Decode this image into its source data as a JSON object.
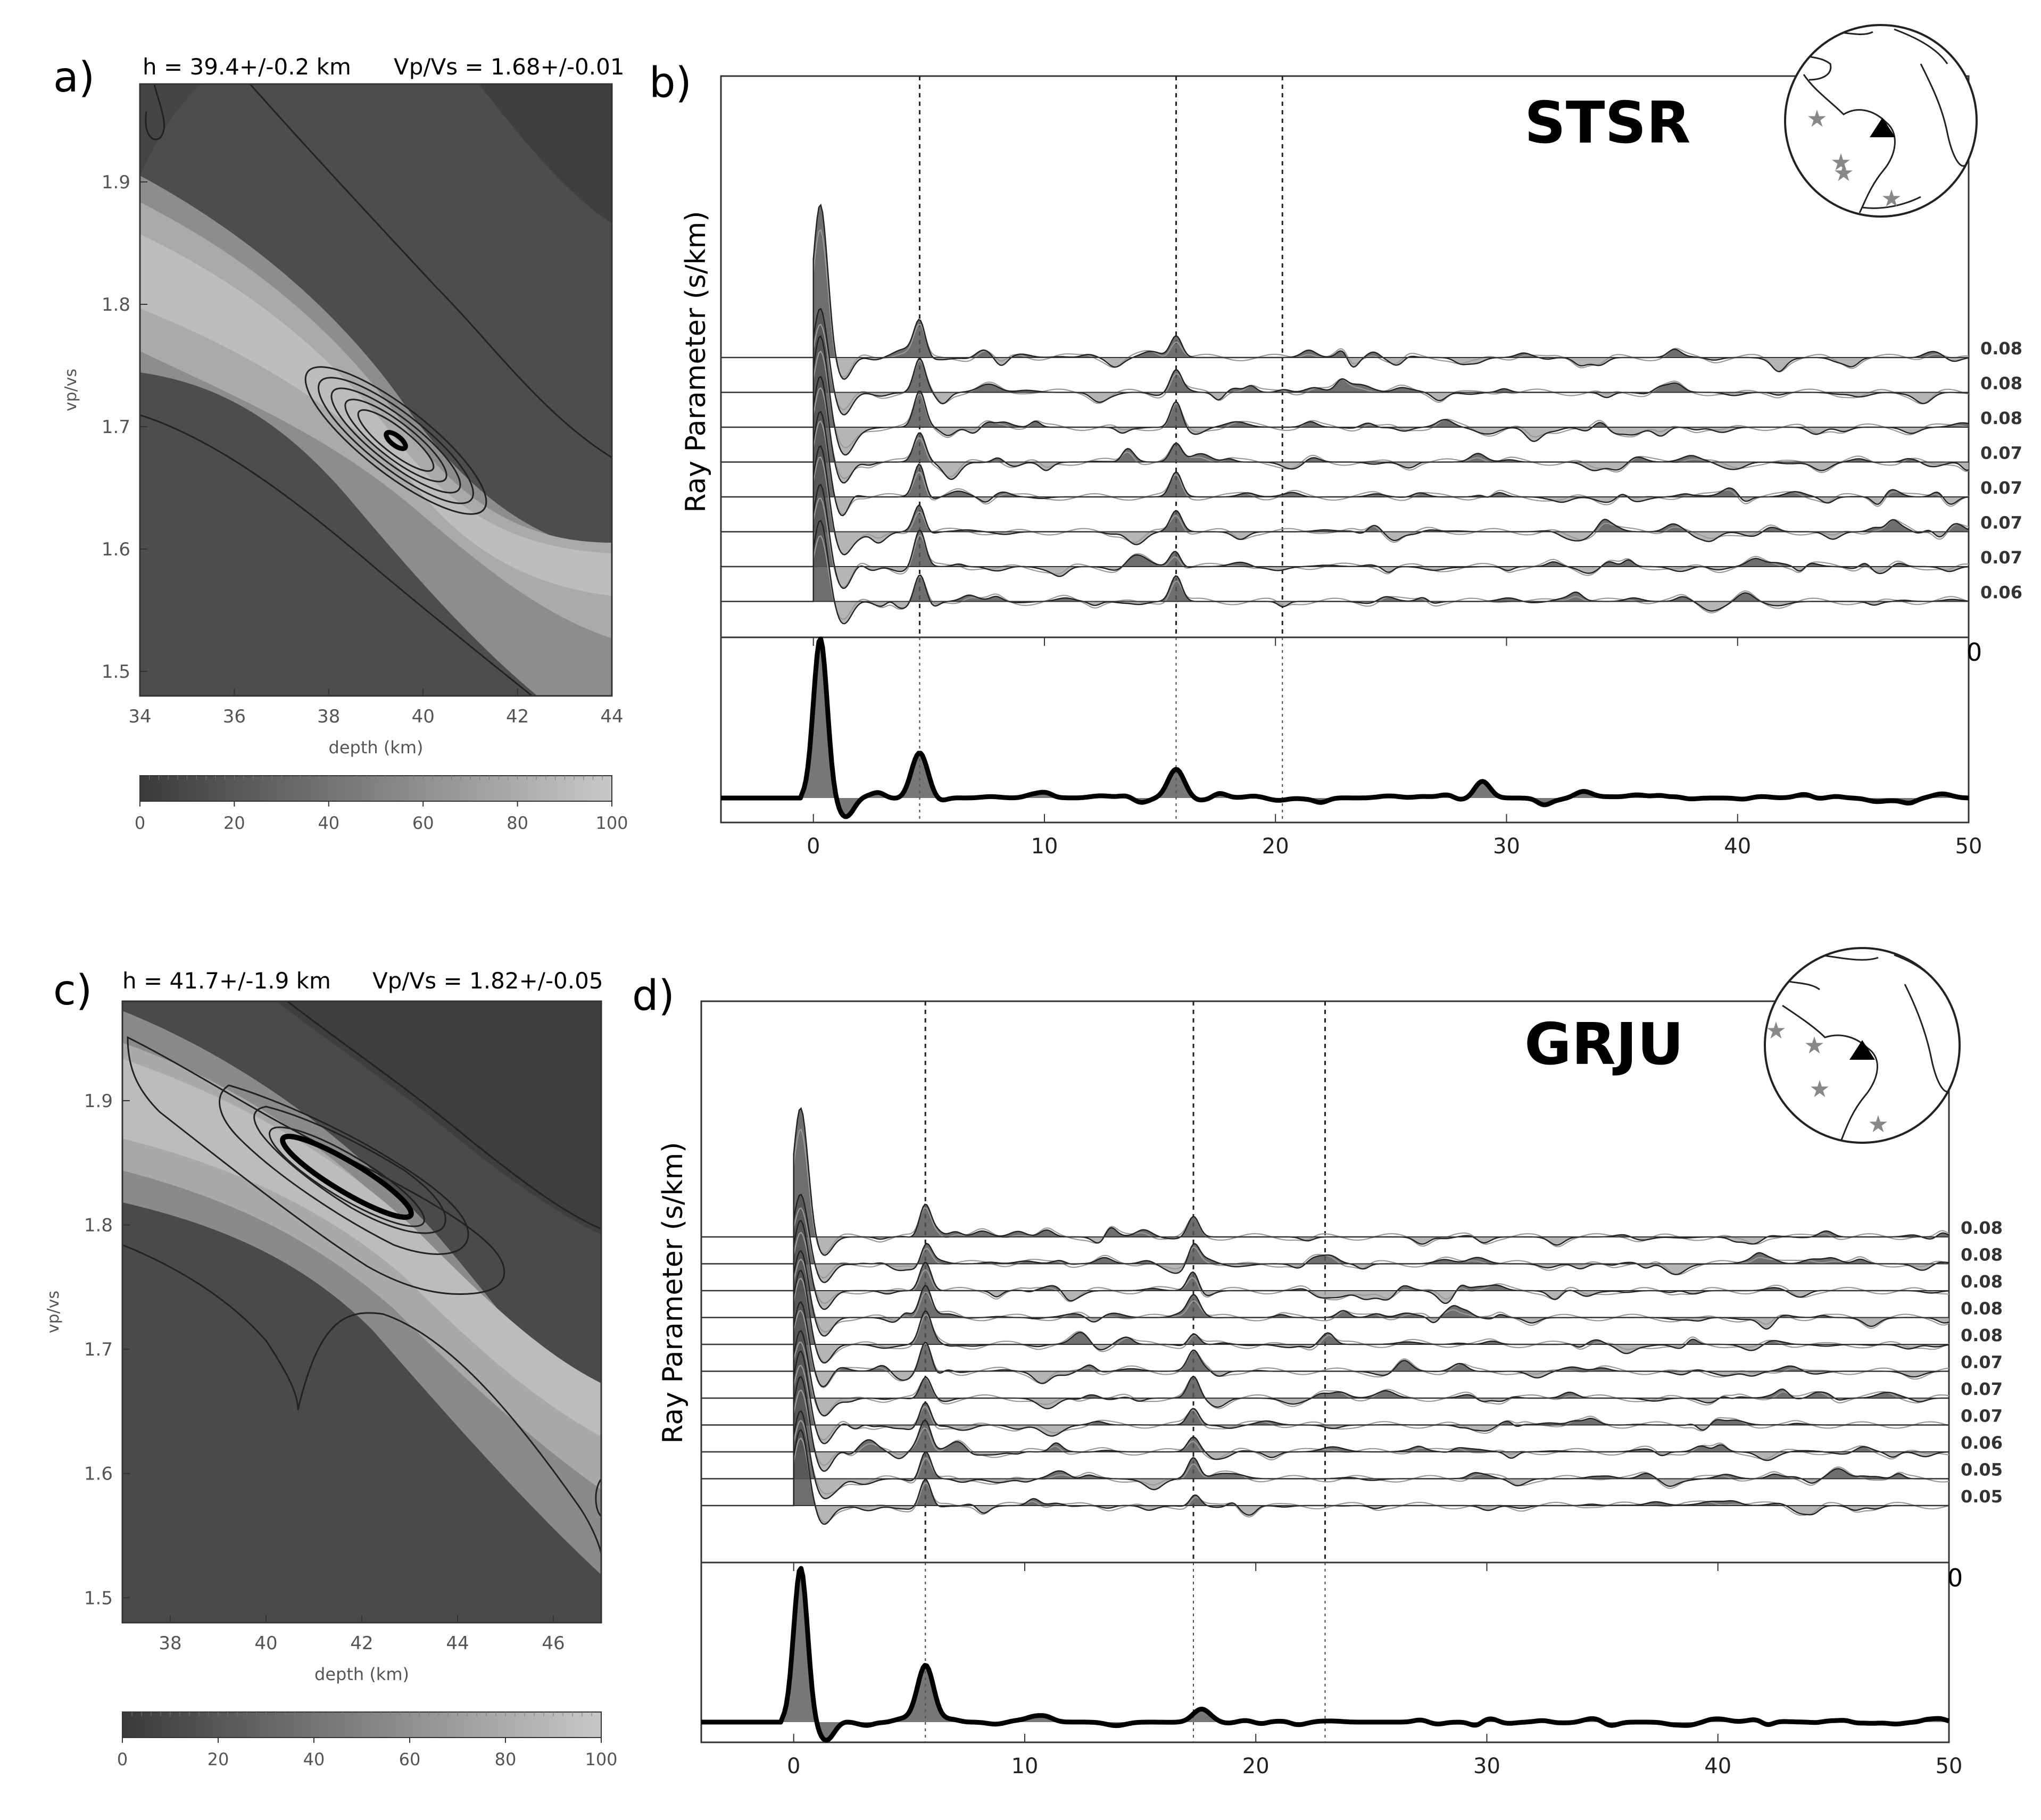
{
  "panels": {
    "a": {
      "letter": "a)",
      "h_text": "h = 39.4+/-0.2 km",
      "vpvs_text": "Vp/Vs = 1.68+/-0.01"
    },
    "b": {
      "letter": "b)",
      "station": "STSR"
    },
    "c": {
      "letter": "c)",
      "h_text": "h = 41.7+/-1.9 km",
      "vpvs_text": "Vp/Vs = 1.82+/-0.05"
    },
    "d": {
      "letter": "d)",
      "station": "GRJU"
    }
  },
  "colors": {
    "field_dark": "#4a4a4a",
    "field_light": "#bdbdbd",
    "trace_fill": "#555555",
    "negative_fill": "#a8a8a8",
    "star": "#888888"
  },
  "chart_data": [
    {
      "type": "heatmap",
      "panel": "a",
      "title": "",
      "xlabel": "depth (km)",
      "ylabel": "vp/vs",
      "xlim": [
        34,
        44
      ],
      "ylim": [
        1.48,
        1.98
      ],
      "xticks": [
        34,
        36,
        38,
        40,
        42,
        44
      ],
      "yticks": [
        1.5,
        1.6,
        1.7,
        1.8,
        1.9
      ],
      "best": {
        "h": 39.4,
        "vpvs": 1.68
      },
      "colorbar": {
        "range": [
          0,
          100
        ],
        "ticks": [
          0,
          20,
          40,
          60,
          80,
          100
        ]
      }
    },
    {
      "type": "line",
      "panel": "b",
      "station": "STSR",
      "ylabel": "Ray Parameter (s/km)",
      "xlim": [
        -4,
        50
      ],
      "xticks": [
        0,
        10,
        20,
        30,
        40,
        50
      ],
      "top_axis_partial_tick": "0",
      "ray_parameters": [
        "0.08",
        "0.08",
        "0.08",
        "0.07",
        "0.07",
        "0.07",
        "0.07",
        "0.06"
      ],
      "phase_times_s": [
        4.6,
        15.7,
        20.3
      ],
      "stack_peaks": [
        {
          "t": 0.3,
          "amp": 1.0
        },
        {
          "t": 4.6,
          "amp": 0.28
        },
        {
          "t": 15.7,
          "amp": 0.18
        },
        {
          "t": 28.9,
          "amp": 0.1
        }
      ]
    },
    {
      "type": "heatmap",
      "panel": "c",
      "title": "",
      "xlabel": "depth (km)",
      "ylabel": "vp/vs",
      "xlim": [
        37,
        47
      ],
      "ylim": [
        1.48,
        1.98
      ],
      "xticks": [
        38,
        40,
        42,
        44,
        46
      ],
      "yticks": [
        1.5,
        1.6,
        1.7,
        1.8,
        1.9
      ],
      "best": {
        "h": 41.7,
        "vpvs": 1.82
      },
      "colorbar": {
        "range": [
          0,
          100
        ],
        "ticks": [
          0,
          20,
          40,
          60,
          80,
          100
        ]
      }
    },
    {
      "type": "line",
      "panel": "d",
      "station": "GRJU",
      "ylabel": "Ray Parameter (s/km)",
      "xlim": [
        -4,
        50
      ],
      "xticks": [
        0,
        10,
        20,
        30,
        40,
        50
      ],
      "top_axis_partial_tick": "0",
      "ray_parameters": [
        "0.08",
        "0.08",
        "0.08",
        "0.08",
        "0.08",
        "0.07",
        "0.07",
        "0.07",
        "0.06",
        "0.05",
        "0.05"
      ],
      "phase_times_s": [
        5.7,
        17.3,
        23.0
      ],
      "stack_peaks": [
        {
          "t": 0.3,
          "amp": 1.0
        },
        {
          "t": 5.7,
          "amp": 0.34
        },
        {
          "t": 17.6,
          "amp": 0.07
        }
      ]
    }
  ]
}
